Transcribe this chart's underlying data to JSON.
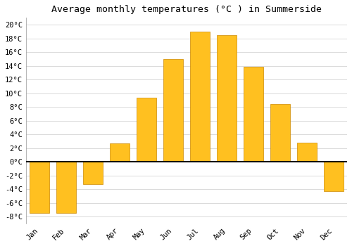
{
  "months": [
    "Jan",
    "Feb",
    "Mar",
    "Apr",
    "May",
    "Jun",
    "Jul",
    "Aug",
    "Sep",
    "Oct",
    "Nov",
    "Dec"
  ],
  "values": [
    -7.5,
    -7.5,
    -3.3,
    2.7,
    9.3,
    15.0,
    19.0,
    18.5,
    13.9,
    8.4,
    2.8,
    -4.3
  ],
  "bar_color": "#FFC020",
  "bar_edge_color": "#CC8800",
  "title": "Average monthly temperatures (°C ) in Summerside",
  "title_fontsize": 9.5,
  "ylim": [
    -9,
    21
  ],
  "yticks": [
    -8,
    -6,
    -4,
    -2,
    0,
    2,
    4,
    6,
    8,
    10,
    12,
    14,
    16,
    18,
    20
  ],
  "background_color": "#ffffff",
  "grid_color": "#cccccc",
  "zero_line_color": "#000000",
  "tick_label_fontsize": 7.5,
  "font_family": "monospace"
}
